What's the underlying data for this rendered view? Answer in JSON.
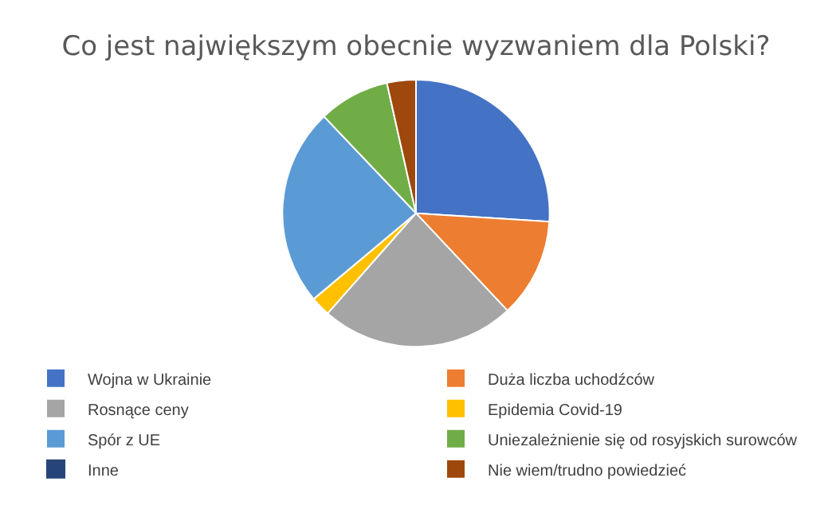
{
  "chart_data": {
    "type": "pie",
    "title": "Co jest największym obecnie wyzwaniem dla Polski?",
    "categories": [
      "Wojna w Ukrainie",
      "Duża liczba uchodźców",
      "Rosnące ceny",
      "Epidemia Covid-19",
      "Spór z UE",
      "Uniezależnienie się od rosyjskich surowców",
      "Inne",
      "Nie wiem/trudno powiedzieć"
    ],
    "values": [
      26,
      12,
      23.5,
      2.4,
      24,
      8.6,
      null,
      3.5
    ],
    "colors": [
      "#4472c4",
      "#ed7d31",
      "#a5a5a5",
      "#ffc000",
      "#5b9bd5",
      "#70ad47",
      "#264478",
      "#9e480e"
    ],
    "legend": "bottom"
  }
}
